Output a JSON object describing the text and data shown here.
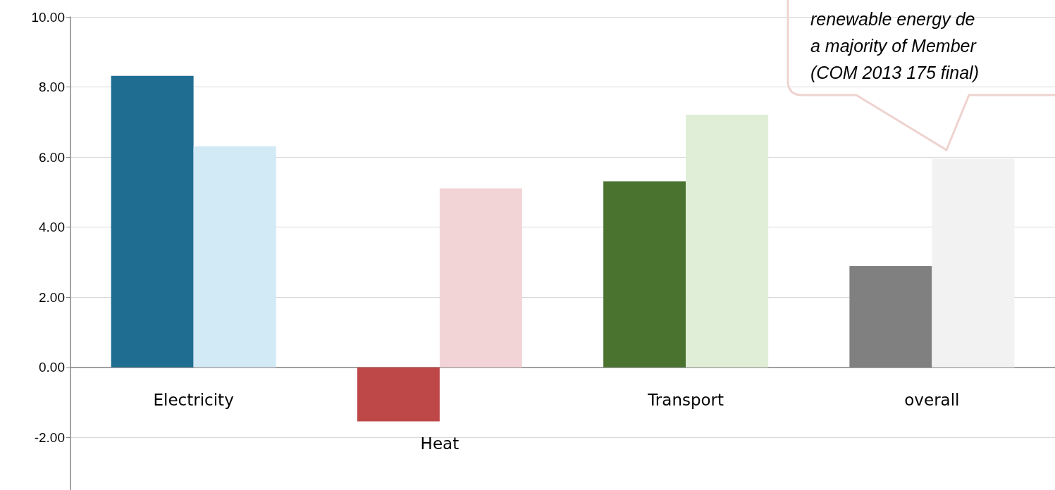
{
  "chart_data": {
    "type": "bar",
    "categories": [
      "Electricity",
      "Heat",
      "Transport",
      "overall"
    ],
    "series": [
      {
        "colors": [
          "#1f6e91",
          "#be4848",
          "#4a7330",
          "#808080"
        ],
        "values": [
          8.32,
          -1.54,
          5.31,
          2.89
        ]
      },
      {
        "colors": [
          "#d2e9f6",
          "#f3d4d6",
          "#e0eed7",
          "#f2f2f2"
        ],
        "values": [
          6.31,
          5.11,
          7.21,
          5.95
        ]
      }
    ],
    "ylim": [
      -3.5,
      10
    ],
    "yticks": [
      {
        "value": -2,
        "label": "-2.00"
      },
      {
        "value": 0,
        "label": "0.00"
      },
      {
        "value": 2,
        "label": "2.00"
      },
      {
        "value": 4,
        "label": "4.00"
      },
      {
        "value": 6,
        "label": "6.00"
      },
      {
        "value": 8,
        "label": "8.00"
      },
      {
        "value": 10,
        "label": "10.00"
      }
    ],
    "grid": "y",
    "annotations": [
      "renewable energy de\na majority of Member\n(COM 2013 175 final)"
    ]
  }
}
